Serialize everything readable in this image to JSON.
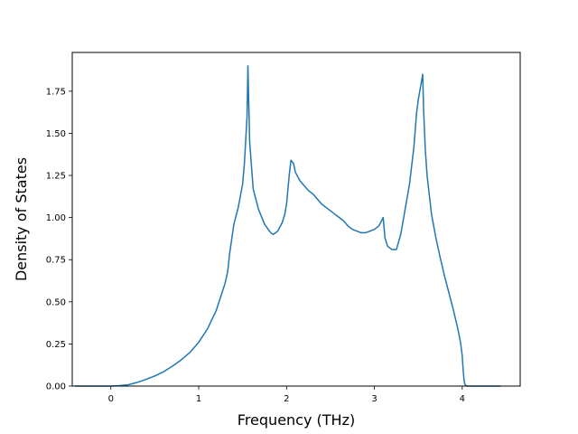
{
  "chart_data": {
    "type": "line",
    "title": "",
    "xlabel": "Frequency (THz)",
    "ylabel": "Density of States",
    "xlim": [
      -0.44,
      4.66
    ],
    "ylim": [
      0,
      1.98
    ],
    "xticks": [
      0,
      1,
      2,
      3,
      4
    ],
    "yticks": [
      0.0,
      0.25,
      0.5,
      0.75,
      1.0,
      1.25,
      1.5,
      1.75
    ],
    "xtick_labels": [
      "0",
      "1",
      "2",
      "3",
      "4"
    ],
    "ytick_labels": [
      "0.00",
      "0.25",
      "0.50",
      "0.75",
      "1.00",
      "1.25",
      "1.50",
      "1.75"
    ],
    "grid": false,
    "line_color": "#1f77b4",
    "series": [
      {
        "x": [
          -0.41,
          0.0,
          0.1,
          0.2,
          0.3,
          0.4,
          0.5,
          0.6,
          0.7,
          0.8,
          0.9,
          1.0,
          1.1,
          1.2,
          1.3,
          1.33,
          1.35,
          1.4,
          1.45,
          1.5,
          1.52,
          1.55,
          1.56,
          1.58,
          1.62,
          1.68,
          1.75,
          1.82,
          1.85,
          1.9,
          1.95,
          1.98,
          2.0,
          2.03,
          2.05,
          2.08,
          2.1,
          2.15,
          2.2,
          2.25,
          2.3,
          2.35,
          2.4,
          2.45,
          2.5,
          2.55,
          2.6,
          2.65,
          2.7,
          2.75,
          2.8,
          2.85,
          2.9,
          2.95,
          3.0,
          3.05,
          3.08,
          3.1,
          3.12,
          3.15,
          3.2,
          3.25,
          3.3,
          3.35,
          3.4,
          3.45,
          3.48,
          3.5,
          3.55,
          3.56,
          3.58,
          3.6,
          3.65,
          3.7,
          3.75,
          3.8,
          3.85,
          3.9,
          3.95,
          3.98,
          4.0,
          4.01,
          4.02,
          4.03,
          4.05,
          4.1,
          4.44
        ],
        "y": [
          0.0,
          0.0,
          0.003,
          0.008,
          0.022,
          0.04,
          0.06,
          0.085,
          0.118,
          0.155,
          0.2,
          0.26,
          0.34,
          0.45,
          0.61,
          0.68,
          0.78,
          0.96,
          1.06,
          1.2,
          1.32,
          1.6,
          1.9,
          1.45,
          1.17,
          1.05,
          0.96,
          0.91,
          0.9,
          0.92,
          0.97,
          1.02,
          1.08,
          1.25,
          1.34,
          1.32,
          1.27,
          1.22,
          1.19,
          1.16,
          1.14,
          1.11,
          1.08,
          1.06,
          1.04,
          1.02,
          1.0,
          0.98,
          0.95,
          0.93,
          0.92,
          0.91,
          0.91,
          0.92,
          0.93,
          0.95,
          0.98,
          1.0,
          0.88,
          0.83,
          0.81,
          0.81,
          0.9,
          1.05,
          1.2,
          1.42,
          1.62,
          1.7,
          1.85,
          1.64,
          1.4,
          1.25,
          1.02,
          0.88,
          0.76,
          0.65,
          0.55,
          0.45,
          0.34,
          0.26,
          0.18,
          0.1,
          0.04,
          0.01,
          0.0,
          0.0,
          0.0
        ]
      }
    ]
  }
}
